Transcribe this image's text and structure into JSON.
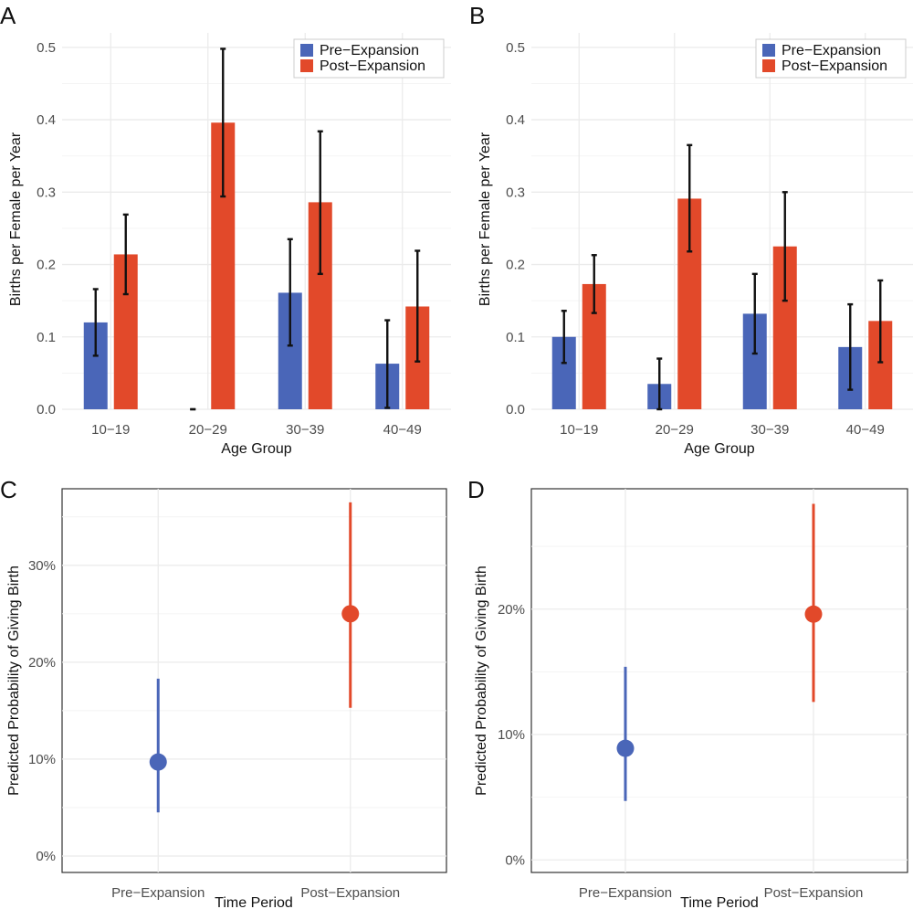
{
  "colors": {
    "pre": "#4a66b8",
    "post": "#e2492a",
    "errorbar": "#111111"
  },
  "chart_data": [
    {
      "panel": "A",
      "type": "bar",
      "title": "",
      "xlabel": "Age Group",
      "ylabel": "Births per Female per Year",
      "categories": [
        "10−19",
        "20−29",
        "30−39",
        "40−49"
      ],
      "ylim": [
        0,
        0.52
      ],
      "yticks": [
        0,
        0.1,
        0.2,
        0.3,
        0.4,
        0.5
      ],
      "ytick_labels": [
        "0.0",
        "0.1",
        "0.2",
        "0.3",
        "0.4",
        "0.5"
      ],
      "legend": {
        "position": "top-right",
        "entries": [
          "Pre−Expansion",
          "Post−Expansion"
        ]
      },
      "series": [
        {
          "name": "Pre−Expansion",
          "color_key": "pre",
          "values": [
            0.12,
            0.0,
            0.161,
            0.063
          ],
          "lower": [
            0.074,
            0.0,
            0.088,
            0.002
          ],
          "upper": [
            0.166,
            0.0,
            0.235,
            0.123
          ]
        },
        {
          "name": "Post−Expansion",
          "color_key": "post",
          "values": [
            0.214,
            0.396,
            0.286,
            0.142
          ],
          "lower": [
            0.159,
            0.294,
            0.187,
            0.066
          ],
          "upper": [
            0.269,
            0.498,
            0.384,
            0.219
          ]
        }
      ]
    },
    {
      "panel": "B",
      "type": "bar",
      "title": "",
      "xlabel": "Age Group",
      "ylabel": "Births per Female per Year",
      "categories": [
        "10−19",
        "20−29",
        "30−39",
        "40−49"
      ],
      "ylim": [
        0,
        0.52
      ],
      "yticks": [
        0,
        0.1,
        0.2,
        0.3,
        0.4,
        0.5
      ],
      "ytick_labels": [
        "0.0",
        "0.1",
        "0.2",
        "0.3",
        "0.4",
        "0.5"
      ],
      "legend": {
        "position": "top-right",
        "entries": [
          "Pre−Expansion",
          "Post−Expansion"
        ]
      },
      "series": [
        {
          "name": "Pre−Expansion",
          "color_key": "pre",
          "values": [
            0.1,
            0.035,
            0.132,
            0.086
          ],
          "lower": [
            0.064,
            0.0,
            0.077,
            0.027
          ],
          "upper": [
            0.136,
            0.07,
            0.187,
            0.145
          ]
        },
        {
          "name": "Post−Expansion",
          "color_key": "post",
          "values": [
            0.173,
            0.291,
            0.225,
            0.122
          ],
          "lower": [
            0.133,
            0.218,
            0.15,
            0.065
          ],
          "upper": [
            0.213,
            0.365,
            0.3,
            0.178
          ]
        }
      ]
    },
    {
      "panel": "C",
      "type": "scatter",
      "title": "",
      "xlabel": "Time Period",
      "ylabel": "Predicted Probability of Giving Birth",
      "categories": [
        "Pre−Expansion",
        "Post−Expansion"
      ],
      "ylim": [
        -1.7,
        37.9
      ],
      "yticks": [
        0,
        10,
        20,
        30
      ],
      "ytick_labels": [
        "0%",
        "10%",
        "20%",
        "30%"
      ],
      "points": [
        {
          "name": "Pre−Expansion",
          "color_key": "pre",
          "estimate": 9.7,
          "lower": 4.5,
          "upper": 18.3
        },
        {
          "name": "Post−Expansion",
          "color_key": "post",
          "estimate": 25.0,
          "lower": 15.3,
          "upper": 36.5
        }
      ]
    },
    {
      "panel": "D",
      "type": "scatter",
      "title": "",
      "xlabel": "Time Period",
      "ylabel": "Predicted Probability of Giving Birth",
      "categories": [
        "Pre−Expansion",
        "Post−Expansion"
      ],
      "ylim": [
        -1.0,
        29.6
      ],
      "yticks": [
        0,
        10,
        20
      ],
      "ytick_labels": [
        "0%",
        "10%",
        "20%"
      ],
      "points": [
        {
          "name": "Pre−Expansion",
          "color_key": "pre",
          "estimate": 8.9,
          "lower": 4.7,
          "upper": 15.4
        },
        {
          "name": "Post−Expansion",
          "color_key": "post",
          "estimate": 19.6,
          "lower": 12.6,
          "upper": 28.4
        }
      ]
    }
  ]
}
